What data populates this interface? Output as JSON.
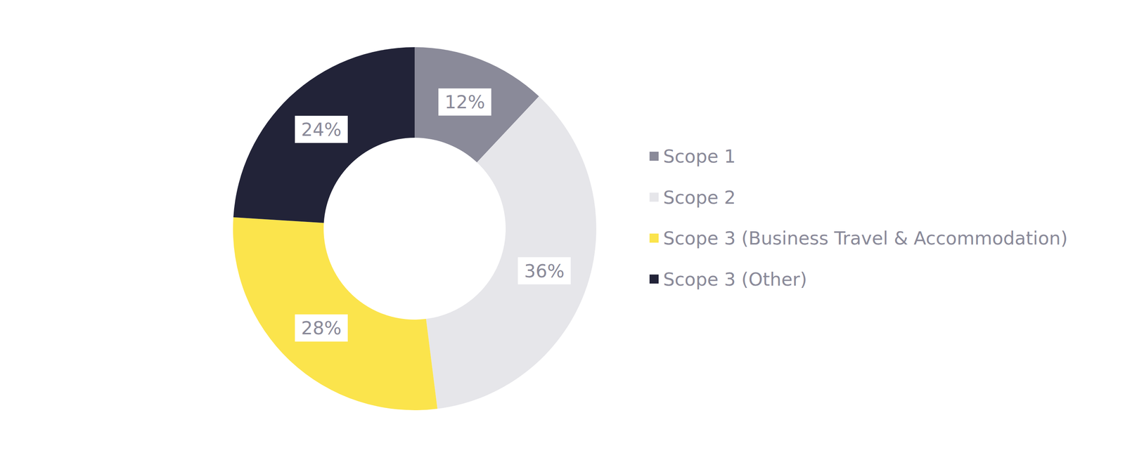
{
  "chart_data": {
    "type": "pie",
    "categories": [
      "Scope 1",
      "Scope 2",
      "Scope 3 (Business Travel & Accommodation)",
      "Scope 3 (Other)"
    ],
    "values": [
      12,
      36,
      28,
      24
    ],
    "value_labels": [
      "12%",
      "36%",
      "28%",
      "24%"
    ],
    "colors": [
      "#8a8a99",
      "#e6e6ea",
      "#fbe44c",
      "#222338"
    ],
    "data_labels": true,
    "legend": "right"
  }
}
